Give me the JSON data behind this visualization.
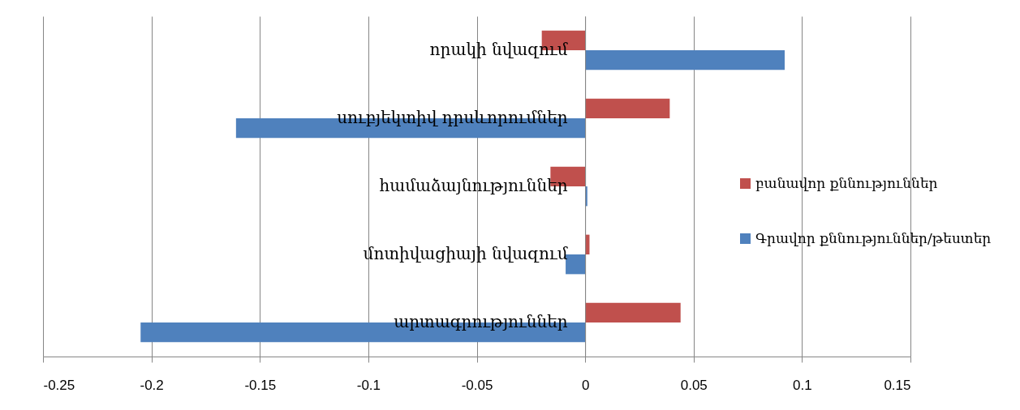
{
  "chart_data": {
    "type": "bar",
    "orientation": "horizontal",
    "categories": [
      "որակի նվազում",
      "սուբյեկտիվ դրսևորումներ",
      "համաձայնություններ",
      "մոտիվացիայի նվազում",
      "արտագրություններ"
    ],
    "series": [
      {
        "name": "բանավոր քննություններ",
        "color": "#c0504d",
        "values": [
          -0.02,
          0.039,
          -0.016,
          0.002,
          0.044
        ]
      },
      {
        "name": "Գրավոր քննություններ/թեստեր",
        "color": "#4f81bd",
        "values": [
          0.092,
          -0.161,
          0.001,
          -0.009,
          -0.205
        ]
      }
    ],
    "xlim": [
      -0.25,
      0.15
    ],
    "xticks": [
      -0.25,
      -0.2,
      -0.15,
      -0.1,
      -0.05,
      0,
      0.05,
      0.1,
      0.15
    ],
    "grid": "x",
    "legend": "right"
  }
}
